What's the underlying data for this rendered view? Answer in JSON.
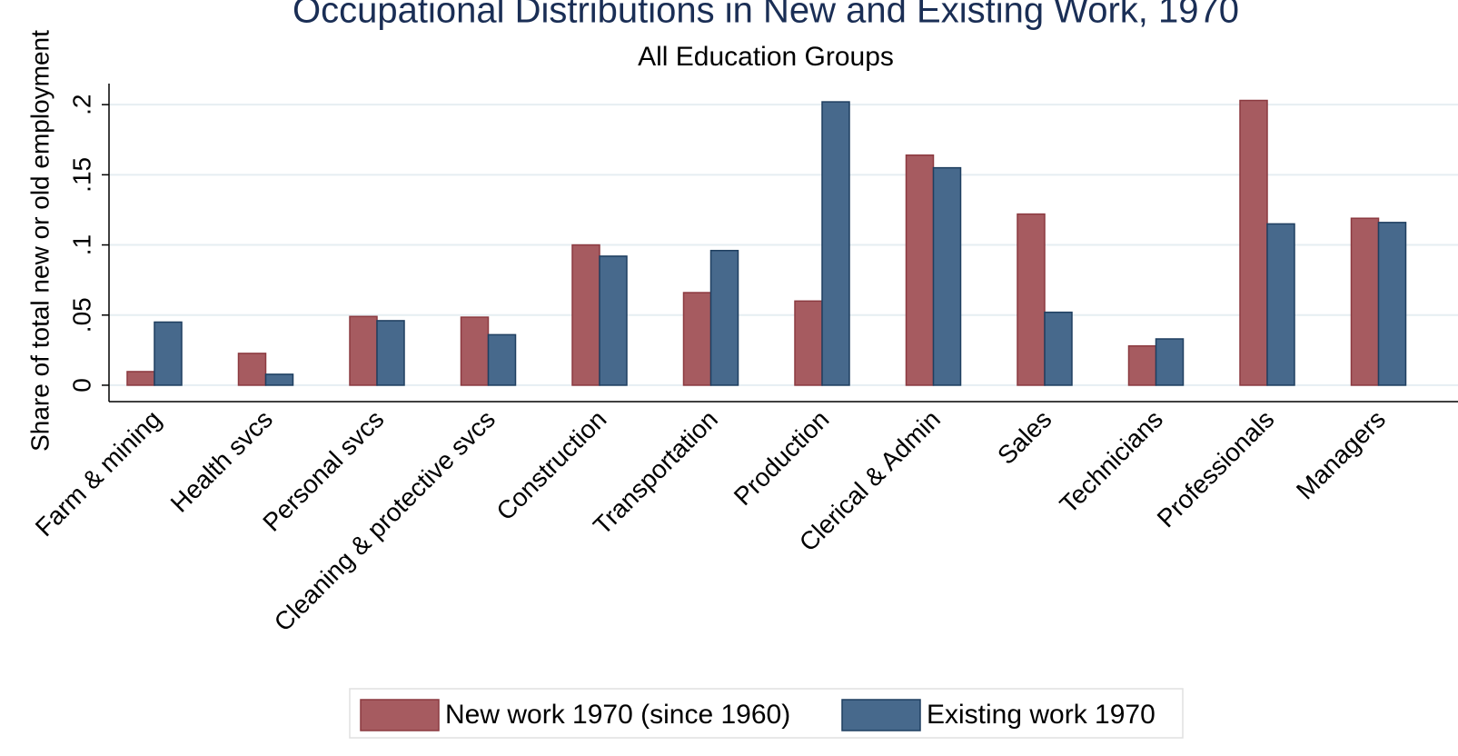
{
  "chart_data": {
    "type": "bar",
    "title": "Occupational Distributions in New and Existing Work, 1970",
    "subtitle": "All Education Groups",
    "y_label": "Share of total new or old employment",
    "categories": [
      "Farm & mining",
      "Health svcs",
      "Personal svcs",
      "Cleaning & protective svcs",
      "Construction",
      "Transportation",
      "Production",
      "Clerical & Admin",
      "Sales",
      "Technicians",
      "Professionals",
      "Managers"
    ],
    "series": [
      {
        "name": "New work 1970 (since 1960)",
        "color": "#a65b60",
        "values": [
          0.0097,
          0.0227,
          0.049,
          0.0485,
          0.1,
          0.066,
          0.06,
          0.164,
          0.122,
          0.028,
          0.203,
          0.119
        ]
      },
      {
        "name": "Existing work 1970",
        "color": "#47698c",
        "values": [
          0.045,
          0.0078,
          0.046,
          0.036,
          0.092,
          0.096,
          0.202,
          0.155,
          0.052,
          0.033,
          0.115,
          0.116
        ]
      }
    ],
    "ylim": [
      -0.0117,
      0.215
    ],
    "yticks": [
      0,
      {
        "value": 0.05,
        "label": ".05"
      },
      {
        "value": 0.1,
        "label": ".1"
      },
      {
        "value": 0.15,
        "label": ".15"
      },
      {
        "value": 0.2,
        "label": ".2"
      }
    ],
    "grid": true,
    "legend": "bottom"
  }
}
